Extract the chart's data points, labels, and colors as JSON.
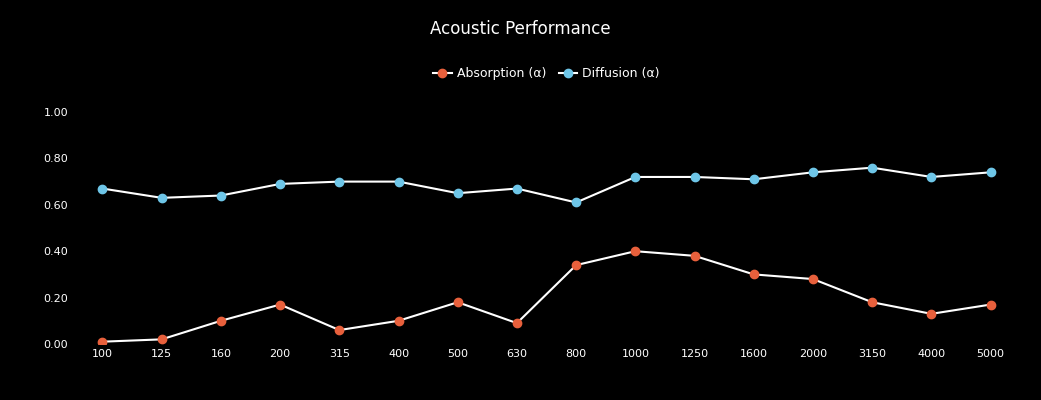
{
  "title": "Acoustic Performance",
  "background_color": "#000000",
  "line_color": "#ffffff",
  "x_labels": [
    "100",
    "125",
    "160",
    "200",
    "315",
    "400",
    "500",
    "630",
    "800",
    "1000",
    "1250",
    "1600",
    "2000",
    "3150",
    "4000",
    "5000"
  ],
  "x_values": [
    100,
    125,
    160,
    200,
    315,
    400,
    500,
    630,
    800,
    1000,
    1250,
    1600,
    2000,
    3150,
    4000,
    5000
  ],
  "absorption": [
    0.01,
    0.02,
    0.1,
    0.17,
    0.06,
    0.1,
    0.18,
    0.09,
    0.34,
    0.4,
    0.38,
    0.3,
    0.28,
    0.18,
    0.13,
    0.17
  ],
  "diffusion": [
    0.67,
    0.63,
    0.64,
    0.69,
    0.7,
    0.7,
    0.65,
    0.67,
    0.61,
    0.72,
    0.72,
    0.71,
    0.74,
    0.76,
    0.72,
    0.74
  ],
  "absorption_color": "#e8603c",
  "diffusion_color": "#6ec6e8",
  "ylim": [
    0.0,
    1.0
  ],
  "yticks": [
    0.0,
    0.2,
    0.4,
    0.6,
    0.8,
    1.0
  ],
  "ytick_labels": [
    "0.00",
    "0.20",
    "0.40",
    "0.60",
    "0.80",
    "1.00"
  ],
  "legend_absorption": "Absorption (α)",
  "legend_diffusion": "Diffusion (α)",
  "marker_size": 6,
  "line_width": 1.5,
  "title_fontsize": 12,
  "label_fontsize": 9,
  "tick_fontsize": 8
}
